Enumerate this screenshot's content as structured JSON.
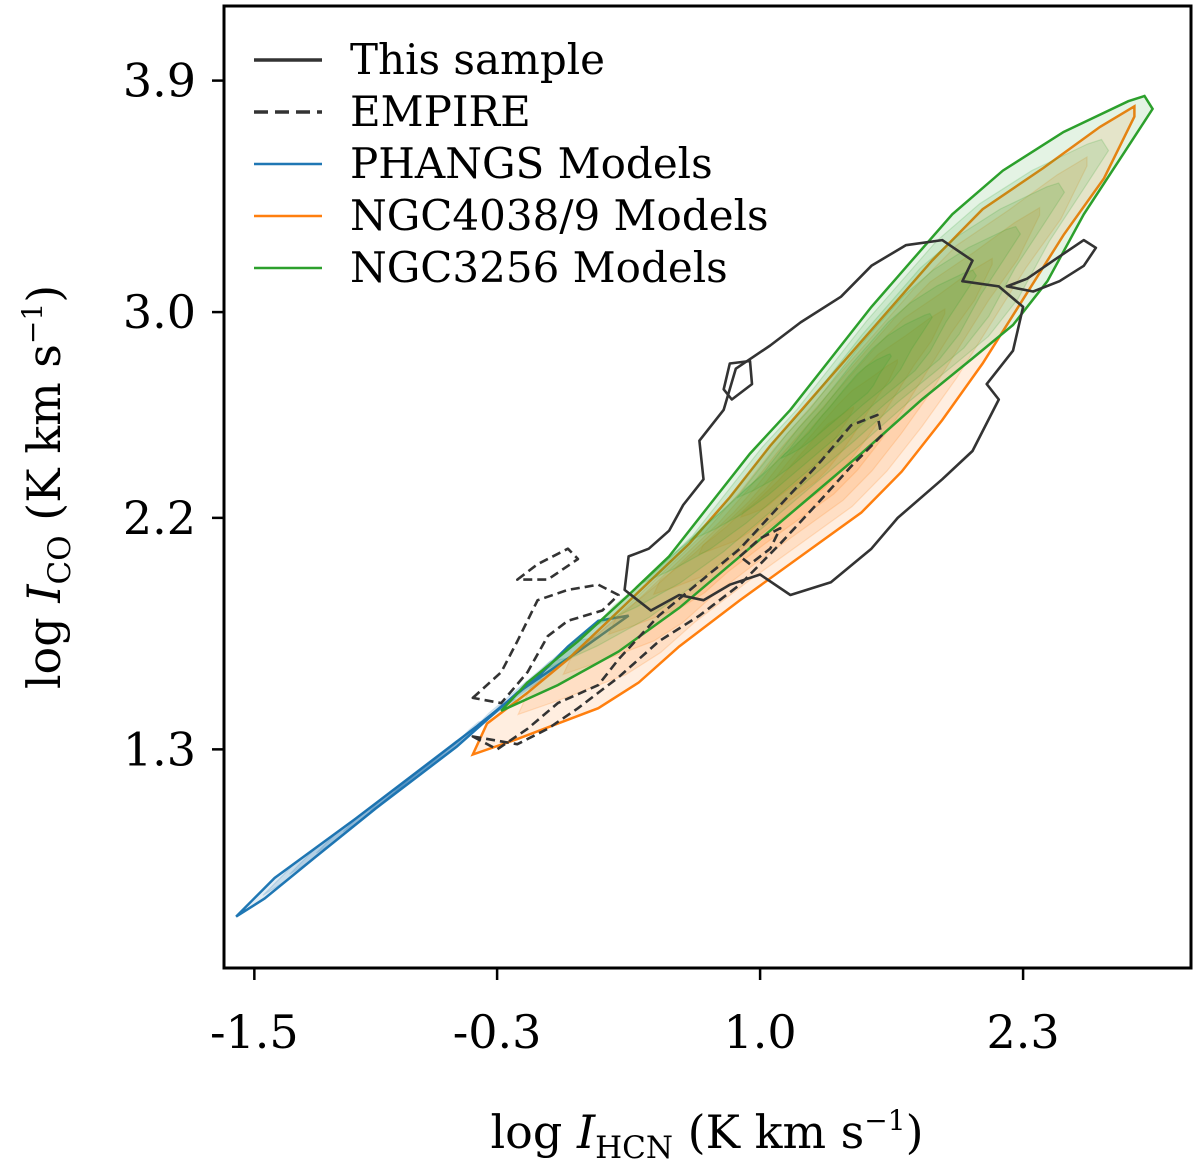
{
  "chart_data": {
    "type": "contour",
    "xlabel": {
      "prefix": "log ",
      "var": "I",
      "sub": "HCN",
      "unit_open": " (K km s",
      "sup": "−1",
      "unit_close": ")"
    },
    "ylabel": {
      "prefix": "log ",
      "var": "I",
      "sub": "CO",
      "unit_open": " (K km s",
      "sup": "−1",
      "unit_close": ")"
    },
    "xlim": [
      -1.65,
      3.13
    ],
    "ylim": [
      0.45,
      4.19
    ],
    "x_ticks": [
      {
        "value": -1.5,
        "label": "-1.5"
      },
      {
        "value": -0.3,
        "label": "-0.3"
      },
      {
        "value": 1.0,
        "label": "1.0"
      },
      {
        "value": 2.3,
        "label": "2.3"
      }
    ],
    "y_ticks": [
      {
        "value": 1.3,
        "label": "1.3"
      },
      {
        "value": 2.2,
        "label": "2.2"
      },
      {
        "value": 3.0,
        "label": "3.0"
      },
      {
        "value": 3.9,
        "label": "3.9"
      }
    ],
    "legend_position": "upper-left",
    "series": [
      {
        "name": "PHANGS Models",
        "kind": "filled-kde",
        "color": "#1f77b4",
        "outline": [
          [
            -1.59,
            0.65
          ],
          [
            -1.4,
            0.8
          ],
          [
            -1.0,
            1.03
          ],
          [
            -0.7,
            1.21
          ],
          [
            -0.4,
            1.39
          ],
          [
            -0.1,
            1.58
          ],
          [
            0.05,
            1.7
          ],
          [
            0.2,
            1.8
          ],
          [
            0.35,
            1.82
          ],
          [
            0.1,
            1.68
          ],
          [
            -0.2,
            1.52
          ],
          [
            -0.5,
            1.31
          ],
          [
            -0.9,
            1.07
          ],
          [
            -1.2,
            0.88
          ],
          [
            -1.45,
            0.72
          ],
          [
            -1.59,
            0.65
          ]
        ]
      },
      {
        "name": "NGC4038/9 Models",
        "kind": "filled-kde",
        "color": "#ff7f0e",
        "outline": [
          [
            -0.42,
            1.28
          ],
          [
            -0.35,
            1.4
          ],
          [
            -0.15,
            1.52
          ],
          [
            0.05,
            1.65
          ],
          [
            0.25,
            1.8
          ],
          [
            0.45,
            1.95
          ],
          [
            0.65,
            2.1
          ],
          [
            0.85,
            2.28
          ],
          [
            1.05,
            2.48
          ],
          [
            1.25,
            2.66
          ],
          [
            1.45,
            2.84
          ],
          [
            1.65,
            3.02
          ],
          [
            1.85,
            3.2
          ],
          [
            2.1,
            3.4
          ],
          [
            2.4,
            3.56
          ],
          [
            2.68,
            3.72
          ],
          [
            2.85,
            3.8
          ],
          [
            2.85,
            3.76
          ],
          [
            2.7,
            3.52
          ],
          [
            2.5,
            3.3
          ],
          [
            2.3,
            3.05
          ],
          [
            2.1,
            2.8
          ],
          [
            1.9,
            2.58
          ],
          [
            1.7,
            2.38
          ],
          [
            1.5,
            2.22
          ],
          [
            1.2,
            2.05
          ],
          [
            0.9,
            1.88
          ],
          [
            0.6,
            1.7
          ],
          [
            0.4,
            1.56
          ],
          [
            0.2,
            1.46
          ],
          [
            0.0,
            1.4
          ],
          [
            -0.2,
            1.34
          ],
          [
            -0.42,
            1.28
          ]
        ]
      },
      {
        "name": "NGC3256 Models",
        "kind": "filled-kde",
        "color": "#2ca02c",
        "outline": [
          [
            -0.28,
            1.45
          ],
          [
            -0.15,
            1.56
          ],
          [
            0.1,
            1.72
          ],
          [
            0.35,
            1.9
          ],
          [
            0.55,
            2.05
          ],
          [
            0.75,
            2.25
          ],
          [
            0.95,
            2.45
          ],
          [
            1.15,
            2.62
          ],
          [
            1.35,
            2.82
          ],
          [
            1.55,
            3.02
          ],
          [
            1.75,
            3.2
          ],
          [
            1.95,
            3.38
          ],
          [
            2.2,
            3.55
          ],
          [
            2.5,
            3.7
          ],
          [
            2.82,
            3.82
          ],
          [
            2.9,
            3.84
          ],
          [
            2.94,
            3.79
          ],
          [
            2.8,
            3.62
          ],
          [
            2.6,
            3.38
          ],
          [
            2.42,
            3.12
          ],
          [
            2.25,
            2.95
          ],
          [
            2.05,
            2.82
          ],
          [
            1.8,
            2.66
          ],
          [
            1.5,
            2.45
          ],
          [
            1.2,
            2.25
          ],
          [
            0.9,
            2.05
          ],
          [
            0.6,
            1.85
          ],
          [
            0.3,
            1.68
          ],
          [
            0.0,
            1.55
          ],
          [
            -0.28,
            1.45
          ]
        ]
      },
      {
        "name": "This sample",
        "kind": "density-contour",
        "line": "solid",
        "color": "#333333",
        "paths": [
          [
            [
              0.33,
              1.92
            ],
            [
              0.35,
              2.05
            ],
            [
              0.45,
              2.08
            ],
            [
              0.55,
              2.15
            ],
            [
              0.62,
              2.25
            ],
            [
              0.72,
              2.35
            ],
            [
              0.7,
              2.5
            ],
            [
              0.82,
              2.62
            ],
            [
              0.88,
              2.78
            ],
            [
              1.05,
              2.87
            ],
            [
              1.2,
              2.96
            ],
            [
              1.4,
              3.06
            ],
            [
              1.55,
              3.18
            ],
            [
              1.72,
              3.26
            ],
            [
              1.9,
              3.28
            ],
            [
              2.05,
              3.2
            ],
            [
              2.0,
              3.12
            ],
            [
              2.18,
              3.1
            ],
            [
              2.3,
              3.02
            ],
            [
              2.25,
              2.85
            ],
            [
              2.12,
              2.72
            ],
            [
              2.18,
              2.66
            ],
            [
              2.05,
              2.46
            ],
            [
              1.9,
              2.35
            ],
            [
              1.68,
              2.2
            ],
            [
              1.55,
              2.08
            ],
            [
              1.35,
              1.95
            ],
            [
              1.15,
              1.9
            ],
            [
              1.0,
              1.98
            ],
            [
              0.85,
              1.94
            ],
            [
              0.72,
              1.88
            ],
            [
              0.6,
              1.9
            ],
            [
              0.46,
              1.84
            ],
            [
              0.33,
              1.92
            ]
          ],
          [
            [
              0.82,
              2.7
            ],
            [
              0.85,
              2.8
            ],
            [
              0.95,
              2.81
            ],
            [
              0.96,
              2.72
            ],
            [
              0.86,
              2.66
            ],
            [
              0.82,
              2.7
            ]
          ],
          [
            [
              2.22,
              3.1
            ],
            [
              2.32,
              3.13
            ],
            [
              2.45,
              3.2
            ],
            [
              2.6,
              3.28
            ],
            [
              2.66,
              3.25
            ],
            [
              2.6,
              3.18
            ],
            [
              2.48,
              3.12
            ],
            [
              2.35,
              3.08
            ],
            [
              2.22,
              3.1
            ]
          ]
        ]
      },
      {
        "name": "EMPIRE",
        "kind": "density-contour",
        "line": "dashed",
        "color": "#333333",
        "paths": [
          [
            [
              -0.42,
              1.35
            ],
            [
              -0.3,
              1.3
            ],
            [
              -0.15,
              1.38
            ],
            [
              0.0,
              1.48
            ],
            [
              0.2,
              1.55
            ],
            [
              0.3,
              1.65
            ],
            [
              0.5,
              1.82
            ],
            [
              0.7,
              1.95
            ],
            [
              0.9,
              2.08
            ],
            [
              1.1,
              2.25
            ],
            [
              1.3,
              2.42
            ],
            [
              1.45,
              2.56
            ],
            [
              1.58,
              2.6
            ],
            [
              1.6,
              2.52
            ],
            [
              1.45,
              2.4
            ],
            [
              1.3,
              2.27
            ],
            [
              1.1,
              2.1
            ],
            [
              0.9,
              1.94
            ],
            [
              0.7,
              1.82
            ],
            [
              0.5,
              1.72
            ],
            [
              0.3,
              1.58
            ],
            [
              0.1,
              1.46
            ],
            [
              -0.05,
              1.38
            ],
            [
              -0.2,
              1.32
            ],
            [
              -0.42,
              1.35
            ]
          ],
          [
            [
              -0.42,
              1.5
            ],
            [
              -0.28,
              1.6
            ],
            [
              -0.2,
              1.72
            ],
            [
              -0.1,
              1.88
            ],
            [
              0.05,
              1.92
            ],
            [
              0.2,
              1.94
            ],
            [
              0.3,
              1.9
            ],
            [
              0.22,
              1.84
            ],
            [
              0.05,
              1.8
            ],
            [
              -0.05,
              1.74
            ],
            [
              -0.15,
              1.6
            ],
            [
              -0.28,
              1.48
            ],
            [
              -0.42,
              1.5
            ]
          ],
          [
            [
              -0.2,
              1.96
            ],
            [
              -0.1,
              2.02
            ],
            [
              0.05,
              2.08
            ],
            [
              0.1,
              2.04
            ],
            [
              -0.05,
              1.96
            ],
            [
              -0.2,
              1.96
            ]
          ],
          [
            [
              0.9,
              2.05
            ],
            [
              1.0,
              2.12
            ],
            [
              1.1,
              2.16
            ],
            [
              1.05,
              2.08
            ],
            [
              0.95,
              2.02
            ],
            [
              0.9,
              2.05
            ]
          ]
        ]
      }
    ]
  },
  "legend": [
    {
      "label": "This sample",
      "line": "solid",
      "color": "#333333"
    },
    {
      "label": "EMPIRE",
      "line": "dashed",
      "color": "#333333"
    },
    {
      "label": "PHANGS Models",
      "line": "solid",
      "color": "#1f77b4"
    },
    {
      "label": "NGC4038/9 Models",
      "line": "solid",
      "color": "#ff7f0e"
    },
    {
      "label": "NGC3256 Models",
      "line": "solid",
      "color": "#2ca02c"
    }
  ]
}
